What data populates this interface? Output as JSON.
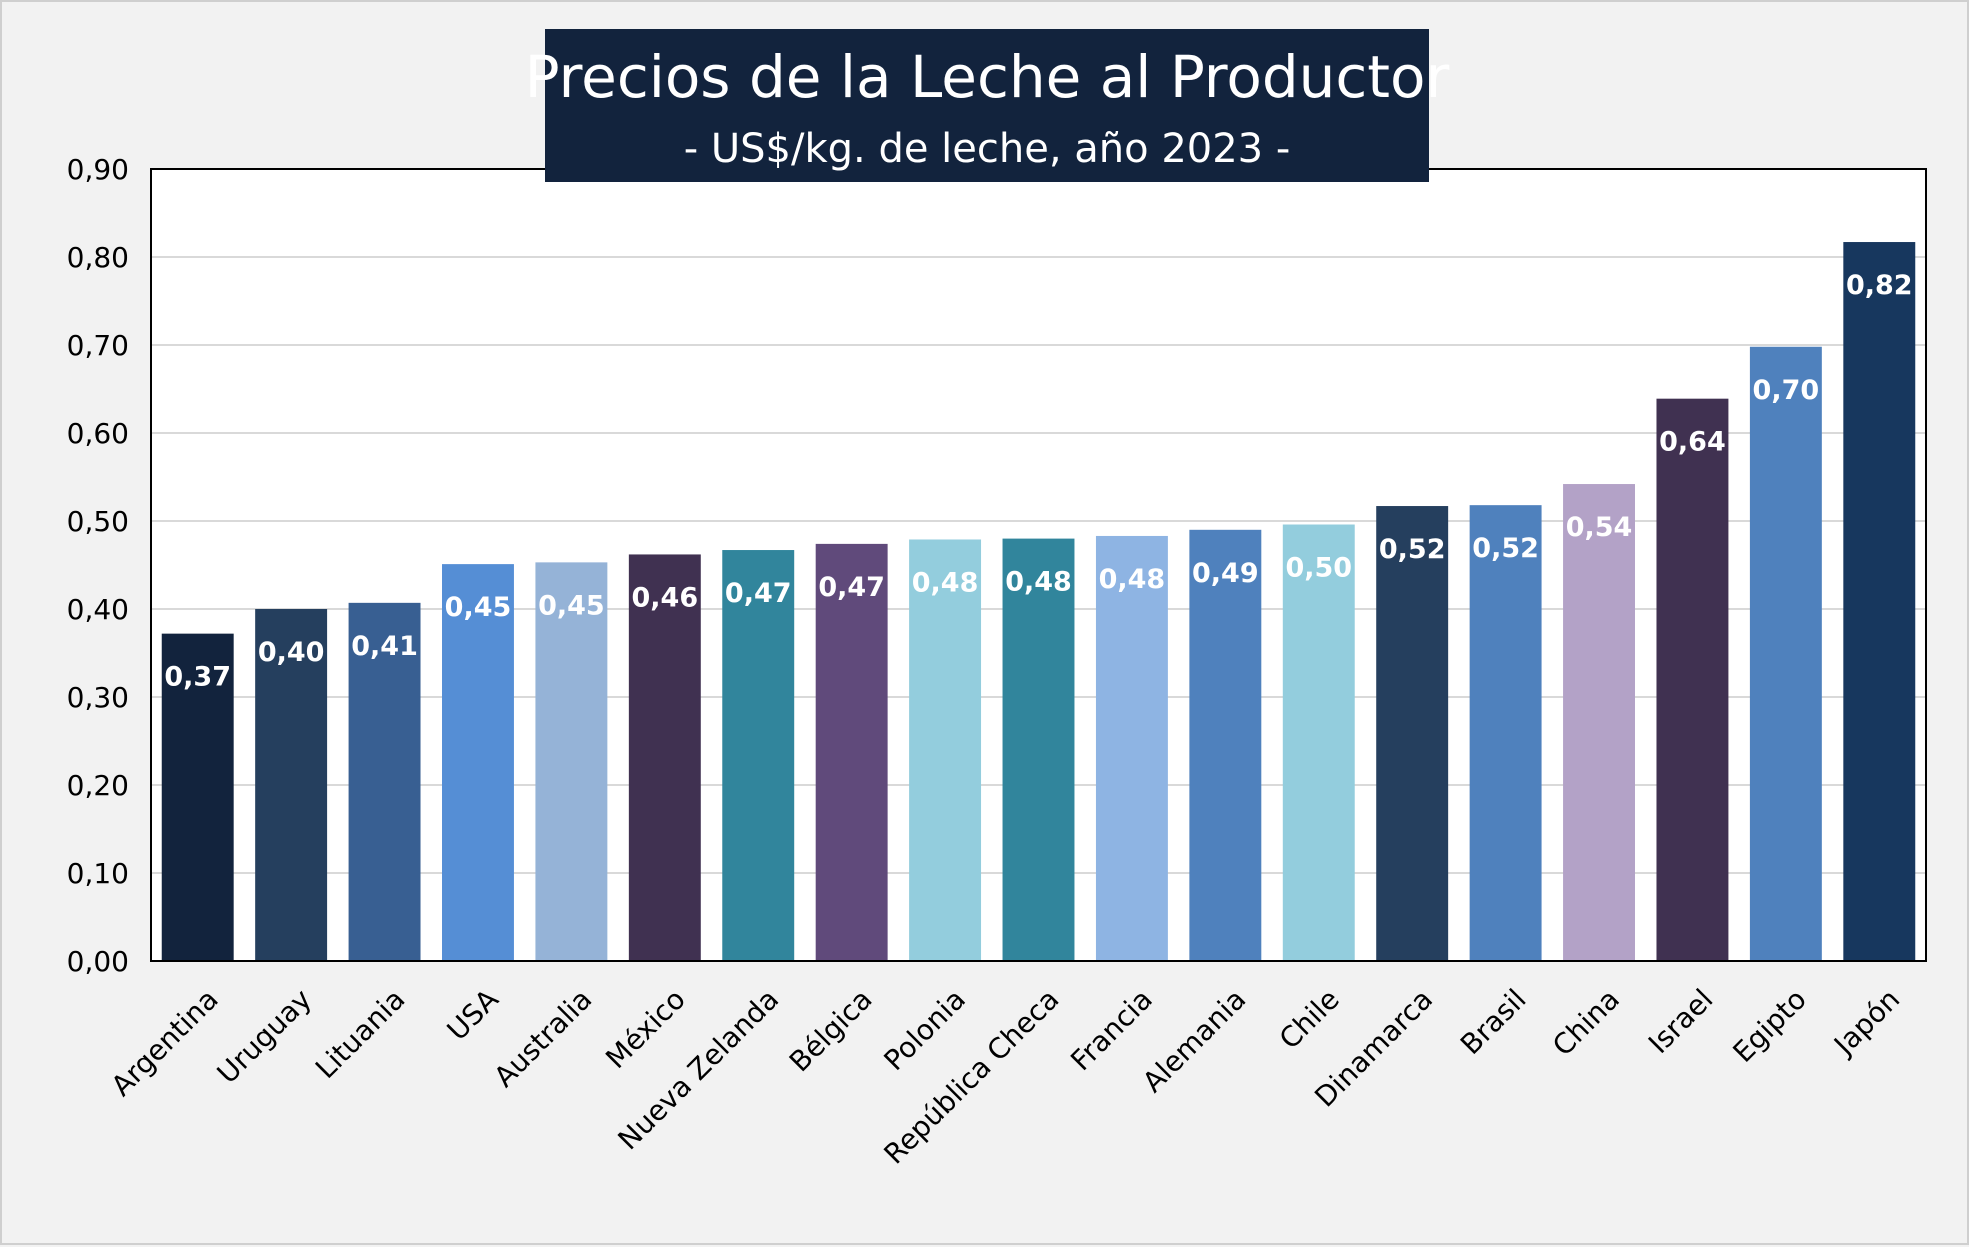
{
  "chart_data": {
    "type": "bar",
    "title": "Precios de la Leche al Productor",
    "subtitle": "- US$/kg. de leche, año 2023 -",
    "xlabel": "",
    "ylabel": "",
    "ylim": [
      0,
      0.9
    ],
    "y_ticks": [
      "0,00",
      "0,10",
      "0,20",
      "0,30",
      "0,40",
      "0,50",
      "0,60",
      "0,70",
      "0,80",
      "0,90"
    ],
    "grid": true,
    "legend": "none",
    "categories": [
      "Argentina",
      "Uruguay",
      "Lituania",
      "USA",
      "Australia",
      "México",
      "Nueva Zelanda",
      "Bélgica",
      "Polonia",
      "República Checa",
      "Francia",
      "Alemania",
      "Chile",
      "Dinamarca",
      "Brasil",
      "China",
      "Israel",
      "Egipto",
      "Japón"
    ],
    "values": [
      0.372,
      0.4,
      0.407,
      0.451,
      0.453,
      0.462,
      0.467,
      0.474,
      0.479,
      0.48,
      0.483,
      0.49,
      0.496,
      0.517,
      0.518,
      0.542,
      0.639,
      0.698,
      0.817
    ],
    "value_labels": [
      "0,37",
      "0,40",
      "0,41",
      "0,45",
      "0,45",
      "0,46",
      "0,47",
      "0,47",
      "0,48",
      "0,48",
      "0,48",
      "0,49",
      "0,50",
      "0,52",
      "0,52",
      "0,54",
      "0,64",
      "0,70",
      "0,82"
    ],
    "colors": [
      "#12233d",
      "#253f5e",
      "#385f92",
      "#558ed5",
      "#95b3d7",
      "#403151",
      "#31859c",
      "#604a7b",
      "#93cddd",
      "#31859c",
      "#8eb4e3",
      "#4f81bd",
      "#93cddd",
      "#253f5e",
      "#4f81bd",
      "#b3a2c7",
      "#403151",
      "#4f81bd",
      "#17375e"
    ],
    "label_colors": [
      "#ffffff",
      "#ffffff",
      "#ffffff",
      "#ffffff",
      "#ffffff",
      "#ffffff",
      "#ffffff",
      "#ffffff",
      "#ffffff",
      "#ffffff",
      "#ffffff",
      "#ffffff",
      "#ffffff",
      "#ffffff",
      "#ffffff",
      "#ffffff",
      "#ffffff",
      "#ffffff",
      "#ffffff"
    ],
    "title_box_color": "#12233d",
    "grid_color": "#d9d9d9"
  }
}
